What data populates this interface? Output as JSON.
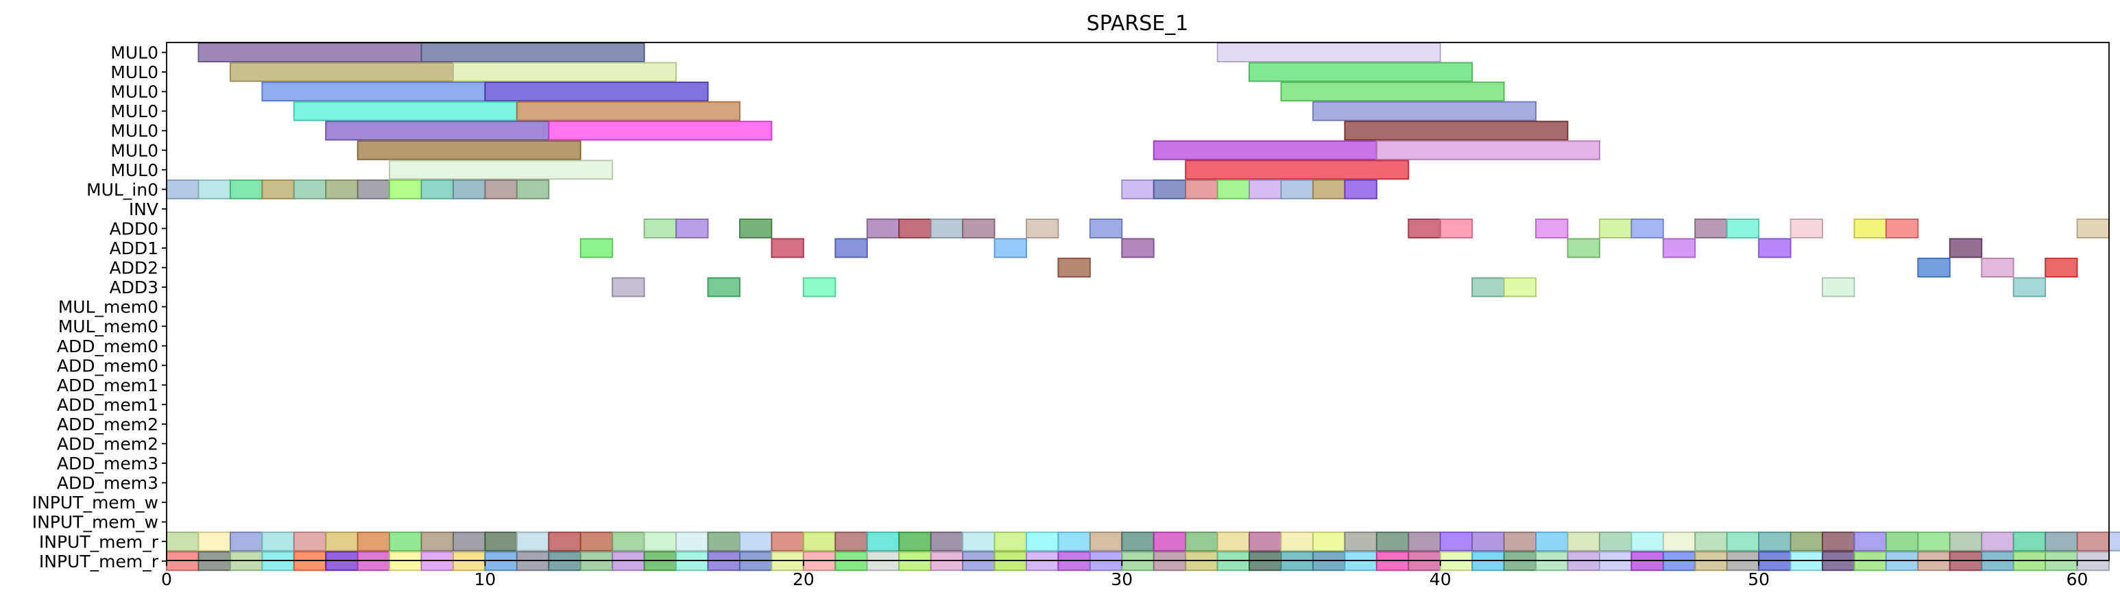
{
  "chart_data": {
    "type": "gantt",
    "title": "SPARSE_1",
    "xlim": [
      0,
      61
    ],
    "xticks": [
      0,
      10,
      20,
      30,
      40,
      50,
      60
    ],
    "grid": false,
    "rows": [
      "MUL0",
      "MUL0",
      "MUL0",
      "MUL0",
      "MUL0",
      "MUL0",
      "MUL0",
      "MUL_in0",
      "INV",
      "ADD0",
      "ADD1",
      "ADD2",
      "ADD3",
      "MUL_mem0",
      "MUL_mem0",
      "ADD_mem0",
      "ADD_mem0",
      "ADD_mem1",
      "ADD_mem1",
      "ADD_mem2",
      "ADD_mem2",
      "ADD_mem3",
      "ADD_mem3",
      "INPUT_mem_w",
      "INPUT_mem_w",
      "INPUT_mem_r",
      "INPUT_mem_r"
    ],
    "bars": [
      {
        "row": 0,
        "start": 1,
        "end": 8,
        "color": "#7b5fa0"
      },
      {
        "row": 0,
        "start": 8,
        "end": 15,
        "color": "#5a6898"
      },
      {
        "row": 0,
        "start": 33,
        "end": 40,
        "color": "#d8ccf2"
      },
      {
        "row": 1,
        "start": 2,
        "end": 9,
        "color": "#b8a86a"
      },
      {
        "row": 1,
        "start": 9,
        "end": 16,
        "color": "#dcedaa"
      },
      {
        "row": 1,
        "start": 34,
        "end": 41,
        "color": "#55e070"
      },
      {
        "row": 2,
        "start": 3,
        "end": 10,
        "color": "#6a8fee"
      },
      {
        "row": 2,
        "start": 10,
        "end": 17,
        "color": "#5545d0"
      },
      {
        "row": 2,
        "start": 35,
        "end": 42,
        "color": "#66e066"
      },
      {
        "row": 3,
        "start": 4,
        "end": 11,
        "color": "#4ff0d8"
      },
      {
        "row": 3,
        "start": 11,
        "end": 18,
        "color": "#c8864f"
      },
      {
        "row": 3,
        "start": 36,
        "end": 43,
        "color": "#8a90d8"
      },
      {
        "row": 4,
        "start": 5,
        "end": 12,
        "color": "#8060cc"
      },
      {
        "row": 4,
        "start": 12,
        "end": 19,
        "color": "#ff44ee"
      },
      {
        "row": 4,
        "start": 37,
        "end": 44,
        "color": "#8a3a3a"
      },
      {
        "row": 5,
        "start": 6,
        "end": 13,
        "color": "#9c7a40"
      },
      {
        "row": 5,
        "start": 31,
        "end": 38,
        "color": "#b845e0"
      },
      {
        "row": 5,
        "start": 38,
        "end": 45,
        "color": "#dd99dd"
      },
      {
        "row": 6,
        "start": 7,
        "end": 14,
        "color": "#dff2d6"
      },
      {
        "row": 6,
        "start": 32,
        "end": 39,
        "color": "#ee3344"
      },
      {
        "row": 7,
        "start": 0,
        "end": 1,
        "color": "#9ab8dd"
      },
      {
        "row": 7,
        "start": 1,
        "end": 2,
        "color": "#a3e0e0"
      },
      {
        "row": 7,
        "start": 2,
        "end": 3,
        "color": "#55e090"
      },
      {
        "row": 7,
        "start": 3,
        "end": 4,
        "color": "#b8a860"
      },
      {
        "row": 7,
        "start": 4,
        "end": 5,
        "color": "#88c8a8"
      },
      {
        "row": 7,
        "start": 5,
        "end": 6,
        "color": "#98a870"
      },
      {
        "row": 7,
        "start": 6,
        "end": 7,
        "color": "#888890"
      },
      {
        "row": 7,
        "start": 7,
        "end": 8,
        "color": "#99ff66"
      },
      {
        "row": 7,
        "start": 8,
        "end": 9,
        "color": "#6acab0"
      },
      {
        "row": 7,
        "start": 9,
        "end": 10,
        "color": "#78aab8"
      },
      {
        "row": 7,
        "start": 10,
        "end": 11,
        "color": "#a08888"
      },
      {
        "row": 7,
        "start": 11,
        "end": 12,
        "color": "#88b888"
      },
      {
        "row": 7,
        "start": 30,
        "end": 31,
        "color": "#bba8f0"
      },
      {
        "row": 7,
        "start": 31,
        "end": 32,
        "color": "#6070b8"
      },
      {
        "row": 7,
        "start": 32,
        "end": 33,
        "color": "#dd8080"
      },
      {
        "row": 7,
        "start": 33,
        "end": 34,
        "color": "#88f070"
      },
      {
        "row": 7,
        "start": 34,
        "end": 35,
        "color": "#c8a8f0"
      },
      {
        "row": 7,
        "start": 35,
        "end": 36,
        "color": "#9ab8dd"
      },
      {
        "row": 7,
        "start": 36,
        "end": 37,
        "color": "#b8a060"
      },
      {
        "row": 7,
        "start": 37,
        "end": 38,
        "color": "#8048e0"
      },
      {
        "row": 9,
        "start": 15,
        "end": 16,
        "color": "#a0e0a0"
      },
      {
        "row": 9,
        "start": 16,
        "end": 17,
        "color": "#a080e0"
      },
      {
        "row": 9,
        "start": 18,
        "end": 19,
        "color": "#4e9a4e"
      },
      {
        "row": 9,
        "start": 22,
        "end": 23,
        "color": "#a070b0"
      },
      {
        "row": 9,
        "start": 23,
        "end": 24,
        "color": "#b04050"
      },
      {
        "row": 9,
        "start": 24,
        "end": 25,
        "color": "#a0b8c8"
      },
      {
        "row": 9,
        "start": 25,
        "end": 26,
        "color": "#a07890"
      },
      {
        "row": 9,
        "start": 27,
        "end": 28,
        "color": "#d0b8a8"
      },
      {
        "row": 9,
        "start": 29,
        "end": 30,
        "color": "#8090e0"
      },
      {
        "row": 9,
        "start": 39,
        "end": 40,
        "color": "#c04058"
      },
      {
        "row": 9,
        "start": 40,
        "end": 41,
        "color": "#ff80a0"
      },
      {
        "row": 9,
        "start": 43,
        "end": 44,
        "color": "#e080f0"
      },
      {
        "row": 9,
        "start": 45,
        "end": 46,
        "color": "#c8f088"
      },
      {
        "row": 9,
        "start": 46,
        "end": 47,
        "color": "#88a0f0"
      },
      {
        "row": 9,
        "start": 48,
        "end": 49,
        "color": "#a07898"
      },
      {
        "row": 9,
        "start": 49,
        "end": 50,
        "color": "#66f0d0"
      },
      {
        "row": 9,
        "start": 51,
        "end": 52,
        "color": "#f0c8d0"
      },
      {
        "row": 9,
        "start": 53,
        "end": 54,
        "color": "#f0f050"
      },
      {
        "row": 9,
        "start": 54,
        "end": 55,
        "color": "#f07070"
      },
      {
        "row": 9,
        "start": 60,
        "end": 61,
        "color": "#d8c8a0"
      },
      {
        "row": 10,
        "start": 13,
        "end": 14,
        "color": "#66f066"
      },
      {
        "row": 10,
        "start": 19,
        "end": 20,
        "color": "#c84060"
      },
      {
        "row": 10,
        "start": 21,
        "end": 22,
        "color": "#6070d0"
      },
      {
        "row": 10,
        "start": 26,
        "end": 27,
        "color": "#70b8f8"
      },
      {
        "row": 10,
        "start": 30,
        "end": 31,
        "color": "#9a60a8"
      },
      {
        "row": 10,
        "start": 44,
        "end": 45,
        "color": "#88d880"
      },
      {
        "row": 10,
        "start": 47,
        "end": 48,
        "color": "#c878f0"
      },
      {
        "row": 10,
        "start": 50,
        "end": 51,
        "color": "#a060f8"
      },
      {
        "row": 10,
        "start": 56,
        "end": 57,
        "color": "#704070"
      },
      {
        "row": 11,
        "start": 28,
        "end": 29,
        "color": "#a06048"
      },
      {
        "row": 11,
        "start": 55,
        "end": 56,
        "color": "#4a80d8"
      },
      {
        "row": 11,
        "start": 57,
        "end": 58,
        "color": "#d8a0d0"
      },
      {
        "row": 11,
        "start": 59,
        "end": 60,
        "color": "#e83838"
      },
      {
        "row": 12,
        "start": 14,
        "end": 15,
        "color": "#b0a8c0"
      },
      {
        "row": 12,
        "start": 17,
        "end": 18,
        "color": "#48b870"
      },
      {
        "row": 12,
        "start": 20,
        "end": 21,
        "color": "#66f8b8"
      },
      {
        "row": 12,
        "start": 41,
        "end": 42,
        "color": "#88c8b0"
      },
      {
        "row": 12,
        "start": 42,
        "end": 43,
        "color": "#d8f888"
      },
      {
        "row": 12,
        "start": 52,
        "end": 53,
        "color": "#d0f0d8"
      },
      {
        "row": 12,
        "start": 58,
        "end": 59,
        "color": "#88ccc8"
      }
    ],
    "input_mem_r_a": [
      "#b8d890",
      "#f8f0a8",
      "#8898d8",
      "#98e0e0",
      "#d89090",
      "#d8c060",
      "#d88040",
      "#70e070",
      "#a09070",
      "#808088",
      "#507050",
      "#b8d8e8",
      "#b84848",
      "#b86040",
      "#88c888",
      "#c0f0c0",
      "#d0ecec",
      "#70a070",
      "#b0d0f0",
      "#d07060",
      "#c8e868",
      "#a86060",
      "#40e0d0",
      "#40b040",
      "#807090",
      "#b0e8f0",
      "#c0f070",
      "#80f8f8",
      "#70d8f8",
      "#c8a888",
      "#508878",
      "#d040c0",
      "#70b870",
      "#e8d888",
      "#b86890",
      "#f0f0a0",
      "#e8f880",
      "#a0a098",
      "#608870",
      "#987898",
      "#9060f8",
      "#9878d8",
      "#b08888",
      "#68c8f8",
      "#d0e0a8",
      "#98d0a8",
      "#a8f8f0",
      "#e8f0c8",
      "#a8d8a8",
      "#78e0b8",
      "#60b0b0",
      "#80a060",
      "#804858",
      "#9080f0",
      "#70d070",
      "#80e080",
      "#a0c0a0",
      "#c8a0d8",
      "#50d0a0",
      "#7898a8",
      "#c07878",
      "#b0c0f0",
      "#a0a8d8"
    ],
    "input_mem_r_b": [
      "#f07070",
      "#707870",
      "#b0d098",
      "#70e8e8",
      "#ff7040",
      "#7030d0",
      "#d050c0",
      "#f8f888",
      "#d890f0",
      "#f0d868",
      "#60a0e0",
      "#888898",
      "#508888",
      "#88c088",
      "#b890d8",
      "#50b050",
      "#88f0d8",
      "#7868d0",
      "#6880c8",
      "#e0f090",
      "#f8a0a0",
      "#60e060",
      "#d0d8d0",
      "#b0f060",
      "#e0a0d0",
      "#8890d8",
      "#b0e850",
      "#c8a0f0",
      "#b050e0",
      "#a090f8",
      "#90d090",
      "#b08898",
      "#c8c870",
      "#78d8a0",
      "#406858",
      "#50a8b0",
      "#5090b0",
      "#70d8f8",
      "#f040b0",
      "#d05898",
      "#e0f8a0",
      "#50c8f0",
      "#60a070",
      "#a0e0b0",
      "#b8a0e0",
      "#c0c0f8",
      "#b040e0",
      "#6080f0",
      "#c8b880",
      "#a0a0a0",
      "#5060d0",
      "#90f0f8",
      "#604880",
      "#90e070",
      "#80c0e8",
      "#c8a088",
      "#a04858",
      "#60a8c0",
      "#90e070",
      "#90d890",
      "#c0c0d0"
    ]
  }
}
